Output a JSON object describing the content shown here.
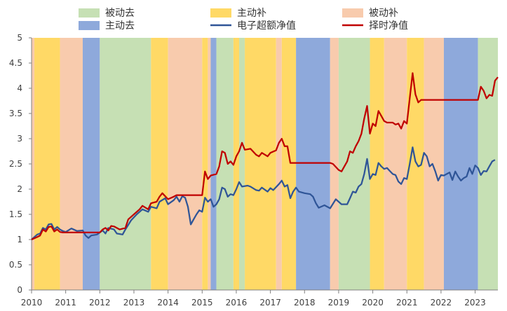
{
  "chart_data": {
    "type": "line",
    "xlim": [
      "2010-01",
      "2023-09"
    ],
    "ylim": [
      0,
      5
    ],
    "yticks": [
      "0",
      "0.5",
      "1",
      "1.5",
      "2",
      "2.5",
      "3",
      "3.5",
      "4",
      "4.5",
      "5"
    ],
    "xticks": [
      "2010",
      "2011",
      "2012",
      "2013",
      "2014",
      "2015",
      "2016",
      "2017",
      "2018",
      "2019",
      "2020",
      "2021",
      "2022",
      "2023"
    ],
    "grid": false,
    "legend_position": "top",
    "regime_colors": {
      "被动去": "#c6e0b4",
      "主动补": "#ffd966",
      "被动补": "#f8cbad",
      "主动去": "#8ea9db"
    },
    "regimes": [
      {
        "name": "被动补",
        "start": "2010-01",
        "end": "2010-02"
      },
      {
        "name": "主动补",
        "start": "2010-02",
        "end": "2010-11"
      },
      {
        "name": "被动补",
        "start": "2010-11",
        "end": "2011-07"
      },
      {
        "name": "主动去",
        "start": "2011-07",
        "end": "2012-01"
      },
      {
        "name": "被动去",
        "start": "2012-01",
        "end": "2013-07"
      },
      {
        "name": "主动补",
        "start": "2013-07",
        "end": "2014-01"
      },
      {
        "name": "被动补",
        "start": "2014-01",
        "end": "2015-01"
      },
      {
        "name": "主动补",
        "start": "2015-01",
        "end": "2015-03"
      },
      {
        "name": "被动补",
        "start": "2015-03",
        "end": "2015-04"
      },
      {
        "name": "主动去",
        "start": "2015-04",
        "end": "2015-06"
      },
      {
        "name": "被动去",
        "start": "2015-06",
        "end": "2015-12"
      },
      {
        "name": "主动补",
        "start": "2015-12",
        "end": "2016-02"
      },
      {
        "name": "被动去",
        "start": "2016-02",
        "end": "2016-04"
      },
      {
        "name": "主动补",
        "start": "2016-04",
        "end": "2017-03"
      },
      {
        "name": "被动补",
        "start": "2017-03",
        "end": "2017-05"
      },
      {
        "name": "主动补",
        "start": "2017-05",
        "end": "2017-10"
      },
      {
        "name": "主动去",
        "start": "2017-10",
        "end": "2018-10"
      },
      {
        "name": "被动补",
        "start": "2018-10",
        "end": "2019-01"
      },
      {
        "name": "被动去",
        "start": "2019-01",
        "end": "2019-12"
      },
      {
        "name": "主动补",
        "start": "2019-12",
        "end": "2020-05"
      },
      {
        "name": "被动补",
        "start": "2020-05",
        "end": "2021-01"
      },
      {
        "name": "主动补",
        "start": "2021-01",
        "end": "2021-07"
      },
      {
        "name": "被动补",
        "start": "2021-07",
        "end": "2022-02"
      },
      {
        "name": "主动去",
        "start": "2022-02",
        "end": "2023-02"
      },
      {
        "name": "被动去",
        "start": "2023-02",
        "end": "2023-09"
      }
    ],
    "legend": [
      {
        "label": "被动去",
        "kind": "patch",
        "color": "#c6e0b4"
      },
      {
        "label": "主动补",
        "kind": "patch",
        "color": "#ffd966"
      },
      {
        "label": "被动补",
        "kind": "patch",
        "color": "#f8cbad"
      },
      {
        "label": "主动去",
        "kind": "patch",
        "color": "#8ea9db"
      },
      {
        "label": "电子超额净值",
        "kind": "line",
        "color": "#2f5597"
      },
      {
        "label": "择时净值",
        "kind": "line",
        "color": "#c00000"
      }
    ],
    "series": [
      {
        "name": "电子超额净值",
        "color": "#2f5597",
        "points": [
          [
            "2010-01",
            1.0
          ],
          [
            "2010-03",
            1.1
          ],
          [
            "2010-04",
            1.12
          ],
          [
            "2010-05",
            1.23
          ],
          [
            "2010-06",
            1.2
          ],
          [
            "2010-07",
            1.3
          ],
          [
            "2010-08",
            1.31
          ],
          [
            "2010-09",
            1.2
          ],
          [
            "2010-10",
            1.25
          ],
          [
            "2010-11",
            1.2
          ],
          [
            "2010-12",
            1.17
          ],
          [
            "2011-01",
            1.15
          ],
          [
            "2011-03",
            1.22
          ],
          [
            "2011-05",
            1.17
          ],
          [
            "2011-07",
            1.18
          ],
          [
            "2011-08",
            1.08
          ],
          [
            "2011-09",
            1.03
          ],
          [
            "2011-10",
            1.08
          ],
          [
            "2011-12",
            1.1
          ],
          [
            "2012-02",
            1.18
          ],
          [
            "2012-03",
            1.12
          ],
          [
            "2012-04",
            1.23
          ],
          [
            "2012-06",
            1.2
          ],
          [
            "2012-07",
            1.12
          ],
          [
            "2012-09",
            1.1
          ],
          [
            "2012-10",
            1.2
          ],
          [
            "2012-12",
            1.38
          ],
          [
            "2013-02",
            1.5
          ],
          [
            "2013-04",
            1.6
          ],
          [
            "2013-06",
            1.55
          ],
          [
            "2013-07",
            1.65
          ],
          [
            "2013-09",
            1.62
          ],
          [
            "2013-10",
            1.75
          ],
          [
            "2013-12",
            1.82
          ],
          [
            "2014-01",
            1.7
          ],
          [
            "2014-03",
            1.78
          ],
          [
            "2014-04",
            1.85
          ],
          [
            "2014-05",
            1.75
          ],
          [
            "2014-06",
            1.86
          ],
          [
            "2014-07",
            1.83
          ],
          [
            "2014-08",
            1.65
          ],
          [
            "2014-09",
            1.3
          ],
          [
            "2014-10",
            1.4
          ],
          [
            "2014-11",
            1.5
          ],
          [
            "2014-12",
            1.58
          ],
          [
            "2015-01",
            1.55
          ],
          [
            "2015-02",
            1.83
          ],
          [
            "2015-03",
            1.75
          ],
          [
            "2015-04",
            1.8
          ],
          [
            "2015-05",
            1.65
          ],
          [
            "2015-06",
            1.7
          ],
          [
            "2015-07",
            1.8
          ],
          [
            "2015-08",
            2.03
          ],
          [
            "2015-09",
            2.0
          ],
          [
            "2015-10",
            1.85
          ],
          [
            "2015-11",
            1.9
          ],
          [
            "2015-12",
            1.88
          ],
          [
            "2016-01",
            2.0
          ],
          [
            "2016-02",
            2.14
          ],
          [
            "2016-03",
            2.05
          ],
          [
            "2016-05",
            2.07
          ],
          [
            "2016-06",
            2.05
          ],
          [
            "2016-08",
            1.98
          ],
          [
            "2016-09",
            1.97
          ],
          [
            "2016-10",
            2.03
          ],
          [
            "2016-12",
            1.95
          ],
          [
            "2017-01",
            2.02
          ],
          [
            "2017-02",
            1.98
          ],
          [
            "2017-04",
            2.1
          ],
          [
            "2017-05",
            2.17
          ],
          [
            "2017-06",
            2.05
          ],
          [
            "2017-07",
            2.08
          ],
          [
            "2017-08",
            1.82
          ],
          [
            "2017-09",
            1.95
          ],
          [
            "2017-10",
            2.03
          ],
          [
            "2017-11",
            1.95
          ],
          [
            "2018-01",
            1.92
          ],
          [
            "2018-03",
            1.9
          ],
          [
            "2018-04",
            1.85
          ],
          [
            "2018-05",
            1.72
          ],
          [
            "2018-06",
            1.63
          ],
          [
            "2018-08",
            1.68
          ],
          [
            "2018-10",
            1.62
          ],
          [
            "2018-12",
            1.8
          ],
          [
            "2019-01",
            1.75
          ],
          [
            "2019-02",
            1.7
          ],
          [
            "2019-04",
            1.7
          ],
          [
            "2019-05",
            1.82
          ],
          [
            "2019-06",
            1.95
          ],
          [
            "2019-07",
            1.93
          ],
          [
            "2019-08",
            2.05
          ],
          [
            "2019-09",
            2.1
          ],
          [
            "2019-10",
            2.3
          ],
          [
            "2019-11",
            2.6
          ],
          [
            "2019-12",
            2.2
          ],
          [
            "2020-01",
            2.3
          ],
          [
            "2020-02",
            2.28
          ],
          [
            "2020-03",
            2.52
          ],
          [
            "2020-04",
            2.45
          ],
          [
            "2020-05",
            2.4
          ],
          [
            "2020-06",
            2.42
          ],
          [
            "2020-07",
            2.36
          ],
          [
            "2020-08",
            2.3
          ],
          [
            "2020-09",
            2.28
          ],
          [
            "2020-10",
            2.15
          ],
          [
            "2020-11",
            2.1
          ],
          [
            "2020-12",
            2.22
          ],
          [
            "2021-01",
            2.2
          ],
          [
            "2021-02",
            2.5
          ],
          [
            "2021-03",
            2.83
          ],
          [
            "2021-04",
            2.55
          ],
          [
            "2021-05",
            2.45
          ],
          [
            "2021-06",
            2.48
          ],
          [
            "2021-07",
            2.72
          ],
          [
            "2021-08",
            2.65
          ],
          [
            "2021-09",
            2.45
          ],
          [
            "2021-10",
            2.5
          ],
          [
            "2021-11",
            2.35
          ],
          [
            "2021-12",
            2.17
          ],
          [
            "2022-01",
            2.28
          ],
          [
            "2022-02",
            2.27
          ],
          [
            "2022-03",
            2.3
          ],
          [
            "2022-04",
            2.33
          ],
          [
            "2022-05",
            2.18
          ],
          [
            "2022-06",
            2.35
          ],
          [
            "2022-07",
            2.25
          ],
          [
            "2022-08",
            2.17
          ],
          [
            "2022-09",
            2.22
          ],
          [
            "2022-10",
            2.25
          ],
          [
            "2022-11",
            2.42
          ],
          [
            "2022-12",
            2.3
          ],
          [
            "2023-01",
            2.47
          ],
          [
            "2023-02",
            2.42
          ],
          [
            "2023-03",
            2.28
          ],
          [
            "2023-04",
            2.36
          ],
          [
            "2023-05",
            2.35
          ],
          [
            "2023-06",
            2.45
          ],
          [
            "2023-07",
            2.55
          ],
          [
            "2023-08",
            2.58
          ]
        ]
      },
      {
        "name": "择时净值",
        "color": "#c00000",
        "points": [
          [
            "2010-01",
            1.0
          ],
          [
            "2010-03",
            1.05
          ],
          [
            "2010-04",
            1.08
          ],
          [
            "2010-05",
            1.2
          ],
          [
            "2010-06",
            1.16
          ],
          [
            "2010-07",
            1.25
          ],
          [
            "2010-08",
            1.26
          ],
          [
            "2010-09",
            1.16
          ],
          [
            "2010-10",
            1.2
          ],
          [
            "2010-11",
            1.15
          ],
          [
            "2010-12",
            1.14
          ],
          [
            "2011-01",
            1.14
          ],
          [
            "2012-01",
            1.14
          ],
          [
            "2012-02",
            1.2
          ],
          [
            "2012-03",
            1.23
          ],
          [
            "2012-04",
            1.18
          ],
          [
            "2012-05",
            1.27
          ],
          [
            "2012-06",
            1.26
          ],
          [
            "2012-08",
            1.2
          ],
          [
            "2012-10",
            1.23
          ],
          [
            "2012-11",
            1.4
          ],
          [
            "2013-01",
            1.5
          ],
          [
            "2013-03",
            1.6
          ],
          [
            "2013-04",
            1.67
          ],
          [
            "2013-06",
            1.6
          ],
          [
            "2013-07",
            1.72
          ],
          [
            "2013-09",
            1.75
          ],
          [
            "2013-10",
            1.85
          ],
          [
            "2013-11",
            1.92
          ],
          [
            "2014-01",
            1.8
          ],
          [
            "2014-03",
            1.85
          ],
          [
            "2014-04",
            1.88
          ],
          [
            "2015-01",
            1.88
          ],
          [
            "2015-02",
            2.35
          ],
          [
            "2015-03",
            2.2
          ],
          [
            "2015-04",
            2.27
          ],
          [
            "2015-06",
            2.3
          ],
          [
            "2015-07",
            2.45
          ],
          [
            "2015-08",
            2.75
          ],
          [
            "2015-09",
            2.72
          ],
          [
            "2015-10",
            2.5
          ],
          [
            "2015-11",
            2.55
          ],
          [
            "2015-12",
            2.48
          ],
          [
            "2016-01",
            2.65
          ],
          [
            "2016-02",
            2.75
          ],
          [
            "2016-03",
            2.92
          ],
          [
            "2016-04",
            2.78
          ],
          [
            "2016-06",
            2.8
          ],
          [
            "2016-08",
            2.68
          ],
          [
            "2016-09",
            2.65
          ],
          [
            "2016-10",
            2.72
          ],
          [
            "2016-12",
            2.65
          ],
          [
            "2017-01",
            2.72
          ],
          [
            "2017-03",
            2.77
          ],
          [
            "2017-04",
            2.92
          ],
          [
            "2017-05",
            3.0
          ],
          [
            "2017-06",
            2.85
          ],
          [
            "2017-07",
            2.85
          ],
          [
            "2017-08",
            2.52
          ],
          [
            "2018-10",
            2.52
          ],
          [
            "2018-11",
            2.5
          ],
          [
            "2019-01",
            2.38
          ],
          [
            "2019-02",
            2.35
          ],
          [
            "2019-04",
            2.55
          ],
          [
            "2019-05",
            2.75
          ],
          [
            "2019-06",
            2.72
          ],
          [
            "2019-07",
            2.85
          ],
          [
            "2019-08",
            2.95
          ],
          [
            "2019-09",
            3.1
          ],
          [
            "2019-10",
            3.4
          ],
          [
            "2019-11",
            3.65
          ],
          [
            "2019-12",
            3.1
          ],
          [
            "2020-01",
            3.3
          ],
          [
            "2020-02",
            3.25
          ],
          [
            "2020-03",
            3.55
          ],
          [
            "2020-04",
            3.45
          ],
          [
            "2020-05",
            3.35
          ],
          [
            "2020-06",
            3.32
          ],
          [
            "2020-08",
            3.32
          ],
          [
            "2020-09",
            3.28
          ],
          [
            "2020-10",
            3.3
          ],
          [
            "2020-11",
            3.2
          ],
          [
            "2020-12",
            3.35
          ],
          [
            "2021-01",
            3.3
          ],
          [
            "2021-02",
            3.8
          ],
          [
            "2021-03",
            4.3
          ],
          [
            "2021-04",
            3.88
          ],
          [
            "2021-05",
            3.72
          ],
          [
            "2021-06",
            3.77
          ],
          [
            "2023-02",
            3.77
          ],
          [
            "2023-03",
            4.03
          ],
          [
            "2023-04",
            3.95
          ],
          [
            "2023-05",
            3.8
          ],
          [
            "2023-06",
            3.87
          ],
          [
            "2023-07",
            3.85
          ],
          [
            "2023-08",
            4.15
          ],
          [
            "2023-09",
            4.22
          ]
        ]
      }
    ]
  }
}
